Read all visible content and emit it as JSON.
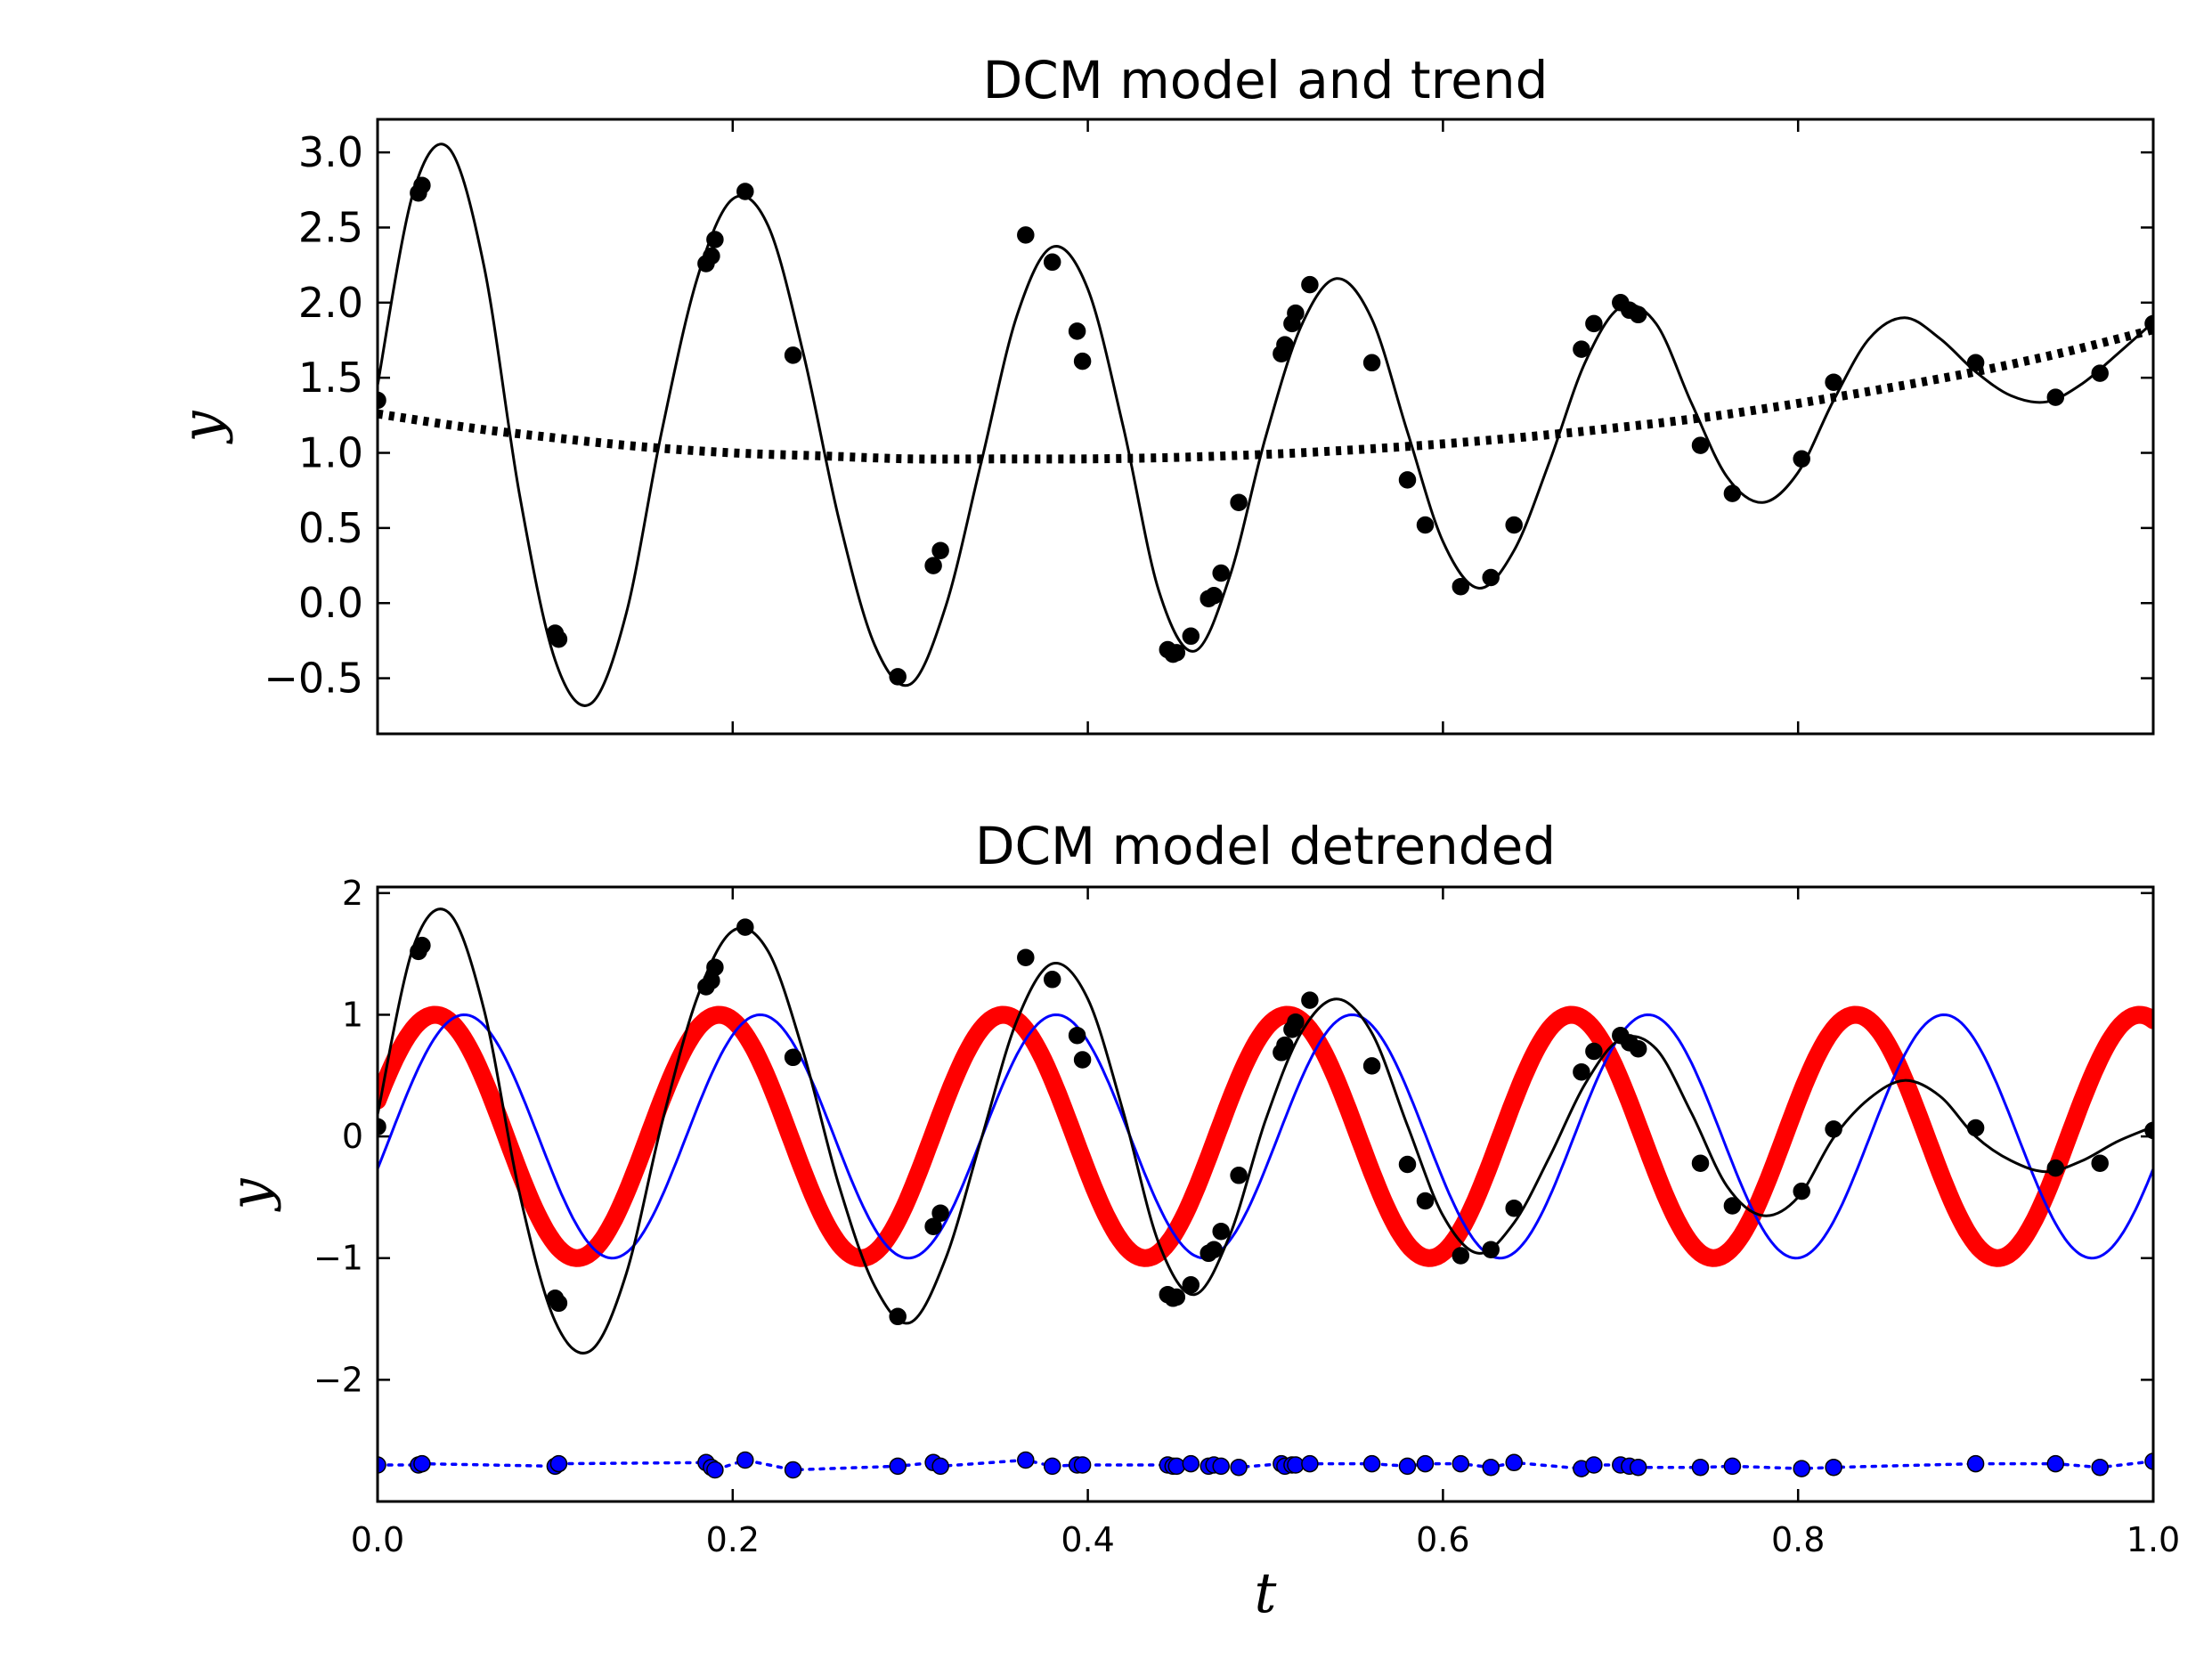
{
  "chart_data": [
    {
      "type": "line",
      "title": "DCM model and trend",
      "xlabel": "",
      "ylabel": "y",
      "xlim": [
        0.0,
        1.0
      ],
      "ylim": [
        -0.87,
        3.22
      ],
      "ytick_values": [
        -0.5,
        0.0,
        0.5,
        1.0,
        1.5,
        2.0,
        2.5,
        3.0
      ],
      "ytick_labels": [
        "−0.5",
        "0.0",
        "0.5",
        "1.0",
        "1.5",
        "2.0",
        "2.5",
        "3.0"
      ],
      "x_tick_labels_shown": false,
      "series": [
        {
          "name": "model",
          "style": "solid black line",
          "color": "#000000",
          "x": [
            0.0,
            0.02,
            0.04,
            0.06,
            0.08,
            0.1,
            0.12,
            0.14,
            0.16,
            0.18,
            0.2,
            0.22,
            0.24,
            0.26,
            0.28,
            0.3,
            0.32,
            0.34,
            0.36,
            0.38,
            0.4,
            0.42,
            0.44,
            0.46,
            0.48,
            0.5,
            0.52,
            0.54,
            0.56,
            0.58,
            0.6,
            0.62,
            0.64,
            0.66,
            0.68,
            0.7,
            0.72,
            0.74,
            0.76,
            0.78,
            0.8,
            0.82,
            0.84,
            0.86,
            0.88,
            0.9,
            0.92,
            0.94,
            0.96,
            0.98,
            1.0
          ],
          "y": [
            1.45,
            2.73,
            3.03,
            2.24,
            0.72,
            -0.38,
            -0.67,
            -0.07,
            1.14,
            2.16,
            2.69,
            2.51,
            1.65,
            0.55,
            -0.28,
            -0.54,
            -0.02,
            0.94,
            1.91,
            2.37,
            2.09,
            1.17,
            0.08,
            -0.32,
            0.18,
            1.1,
            1.84,
            2.16,
            1.89,
            1.14,
            0.41,
            0.1,
            0.35,
            0.94,
            1.6,
            1.97,
            1.86,
            1.33,
            0.84,
            0.67,
            0.87,
            1.35,
            1.76,
            1.9,
            1.76,
            1.54,
            1.38,
            1.34,
            1.46,
            1.66,
            1.87
          ]
        },
        {
          "name": "trend",
          "style": "thick dotted black line",
          "color": "#000000",
          "x": [
            0.0,
            0.05,
            0.1,
            0.15,
            0.2,
            0.25,
            0.3,
            0.35,
            0.4,
            0.45,
            0.5,
            0.55,
            0.6,
            0.65,
            0.7,
            0.75,
            0.8,
            0.85,
            0.9,
            0.95,
            1.0
          ],
          "y": [
            1.26,
            1.17,
            1.1,
            1.04,
            1.0,
            0.98,
            0.96,
            0.96,
            0.96,
            0.97,
            0.99,
            1.02,
            1.06,
            1.11,
            1.17,
            1.24,
            1.33,
            1.43,
            1.54,
            1.67,
            1.82
          ]
        },
        {
          "name": "observations",
          "style": "black filled circles",
          "color": "#000000",
          "x": [
            0.0,
            0.023,
            0.025,
            0.1,
            0.102,
            0.185,
            0.188,
            0.19,
            0.207,
            0.234,
            0.293,
            0.313,
            0.317,
            0.365,
            0.38,
            0.394,
            0.397,
            0.445,
            0.448,
            0.45,
            0.458,
            0.468,
            0.471,
            0.475,
            0.485,
            0.509,
            0.511,
            0.515,
            0.517,
            0.525,
            0.56,
            0.58,
            0.59,
            0.61,
            0.627,
            0.64,
            0.678,
            0.685,
            0.7,
            0.705,
            0.71,
            0.745,
            0.763,
            0.802,
            0.82,
            0.9,
            0.945,
            0.97,
            1.0
          ],
          "y": [
            1.35,
            2.73,
            2.78,
            -0.2,
            -0.24,
            2.26,
            2.31,
            2.42,
            2.74,
            1.65,
            -0.49,
            0.25,
            0.35,
            2.45,
            2.27,
            1.81,
            1.61,
            -0.31,
            -0.34,
            -0.33,
            -0.22,
            0.03,
            0.05,
            0.2,
            0.67,
            1.66,
            1.72,
            1.86,
            1.93,
            2.12,
            1.6,
            0.82,
            0.52,
            0.11,
            0.17,
            0.52,
            1.69,
            1.86,
            2.0,
            1.95,
            1.92,
            1.05,
            0.73,
            0.96,
            1.47,
            1.6,
            1.37,
            1.53,
            1.86
          ]
        }
      ]
    },
    {
      "type": "line",
      "title": "DCM model detrended",
      "xlabel": "t",
      "ylabel": "y",
      "xlim": [
        0.0,
        1.0
      ],
      "ylim": [
        -3.0,
        2.05
      ],
      "xtick_values": [
        0.0,
        0.2,
        0.4,
        0.6,
        0.8,
        1.0
      ],
      "xtick_labels": [
        "0.0",
        "0.2",
        "0.4",
        "0.6",
        "0.8",
        "1.0"
      ],
      "ytick_values": [
        -2,
        -1,
        0,
        1,
        2
      ],
      "ytick_labels": [
        "−2",
        "−1",
        "0",
        "1",
        "2"
      ],
      "series": [
        {
          "name": "red sinusoid",
          "style": "very thick red line",
          "color": "#ff0000",
          "function": "sin(2*pi*6.25*t + 0.3)",
          "x_range": [
            0.0,
            1.0
          ]
        },
        {
          "name": "blue sinusoid",
          "style": "thin blue line",
          "color": "#0000ff",
          "function": "sin(2*pi*6.0*t - 0.27)",
          "x_range": [
            0.0,
            1.0
          ]
        },
        {
          "name": "detrended model",
          "style": "solid black line",
          "color": "#000000",
          "x": [
            0.0,
            0.02,
            0.04,
            0.06,
            0.08,
            0.1,
            0.12,
            0.14,
            0.16,
            0.18,
            0.2,
            0.22,
            0.24,
            0.26,
            0.28,
            0.3,
            0.32,
            0.34,
            0.36,
            0.38,
            0.4,
            0.42,
            0.44,
            0.46,
            0.48,
            0.5,
            0.52,
            0.54,
            0.56,
            0.58,
            0.6,
            0.62,
            0.64,
            0.66,
            0.68,
            0.7,
            0.72,
            0.74,
            0.76,
            0.78,
            0.8,
            0.82,
            0.84,
            0.86,
            0.88,
            0.9,
            0.92,
            0.94,
            0.96,
            0.98,
            1.0
          ],
          "y": [
            0.18,
            1.55,
            1.84,
            1.04,
            -0.47,
            -1.52,
            -1.76,
            -1.13,
            0.1,
            1.14,
            1.69,
            1.52,
            0.68,
            -0.41,
            -1.23,
            -1.53,
            -1.0,
            -0.02,
            0.95,
            1.42,
            1.13,
            0.2,
            -0.88,
            -1.3,
            -0.81,
            0.13,
            0.85,
            1.13,
            0.85,
            0.09,
            -0.65,
            -0.96,
            -0.71,
            -0.17,
            0.43,
            0.8,
            0.72,
            0.19,
            -0.41,
            -0.65,
            -0.5,
            -0.01,
            0.31,
            0.46,
            0.33,
            0.0,
            -0.2,
            -0.29,
            -0.2,
            -0.04,
            0.08
          ]
        },
        {
          "name": "detrended observations",
          "style": "black filled circles",
          "color": "#000000",
          "x": [
            0.0,
            0.023,
            0.025,
            0.1,
            0.102,
            0.185,
            0.188,
            0.19,
            0.207,
            0.234,
            0.293,
            0.313,
            0.317,
            0.365,
            0.38,
            0.394,
            0.397,
            0.445,
            0.448,
            0.45,
            0.458,
            0.468,
            0.471,
            0.475,
            0.485,
            0.509,
            0.511,
            0.515,
            0.517,
            0.525,
            0.56,
            0.58,
            0.59,
            0.61,
            0.627,
            0.64,
            0.678,
            0.685,
            0.7,
            0.705,
            0.71,
            0.745,
            0.763,
            0.802,
            0.82,
            0.9,
            0.945,
            0.97,
            1.0
          ],
          "y": [
            0.08,
            1.52,
            1.57,
            -1.33,
            -1.37,
            1.23,
            1.28,
            1.39,
            1.72,
            0.65,
            -1.48,
            -0.74,
            -0.63,
            1.47,
            1.29,
            0.83,
            0.63,
            -1.3,
            -1.33,
            -1.32,
            -1.22,
            -0.96,
            -0.93,
            -0.78,
            -0.32,
            0.69,
            0.75,
            0.88,
            0.94,
            1.12,
            0.58,
            -0.23,
            -0.53,
            -0.98,
            -0.93,
            -0.59,
            0.53,
            0.7,
            0.83,
            0.77,
            0.72,
            -0.22,
            -0.57,
            -0.45,
            0.06,
            0.07,
            -0.26,
            -0.22,
            0.05
          ]
        },
        {
          "name": "residuals",
          "style": "blue filled circles joined by dotted line",
          "color": "#0000ff",
          "x": [
            0.0,
            0.023,
            0.025,
            0.1,
            0.102,
            0.185,
            0.188,
            0.19,
            0.207,
            0.234,
            0.293,
            0.313,
            0.317,
            0.365,
            0.38,
            0.394,
            0.397,
            0.445,
            0.448,
            0.45,
            0.458,
            0.468,
            0.471,
            0.475,
            0.485,
            0.509,
            0.511,
            0.515,
            0.517,
            0.525,
            0.56,
            0.58,
            0.59,
            0.61,
            0.627,
            0.64,
            0.678,
            0.685,
            0.7,
            0.705,
            0.71,
            0.745,
            0.763,
            0.802,
            0.82,
            0.9,
            0.945,
            0.97,
            1.0
          ],
          "y": [
            -2.7,
            -2.7,
            -2.69,
            -2.71,
            -2.69,
            -2.68,
            -2.72,
            -2.74,
            -2.66,
            -2.74,
            -2.71,
            -2.68,
            -2.71,
            -2.66,
            -2.71,
            -2.7,
            -2.7,
            -2.7,
            -2.71,
            -2.71,
            -2.69,
            -2.71,
            -2.7,
            -2.71,
            -2.72,
            -2.69,
            -2.71,
            -2.7,
            -2.7,
            -2.69,
            -2.69,
            -2.71,
            -2.69,
            -2.69,
            -2.72,
            -2.68,
            -2.73,
            -2.7,
            -2.7,
            -2.71,
            -2.72,
            -2.72,
            -2.71,
            -2.73,
            -2.72,
            -2.69,
            -2.69,
            -2.72,
            -2.67
          ]
        }
      ]
    }
  ]
}
